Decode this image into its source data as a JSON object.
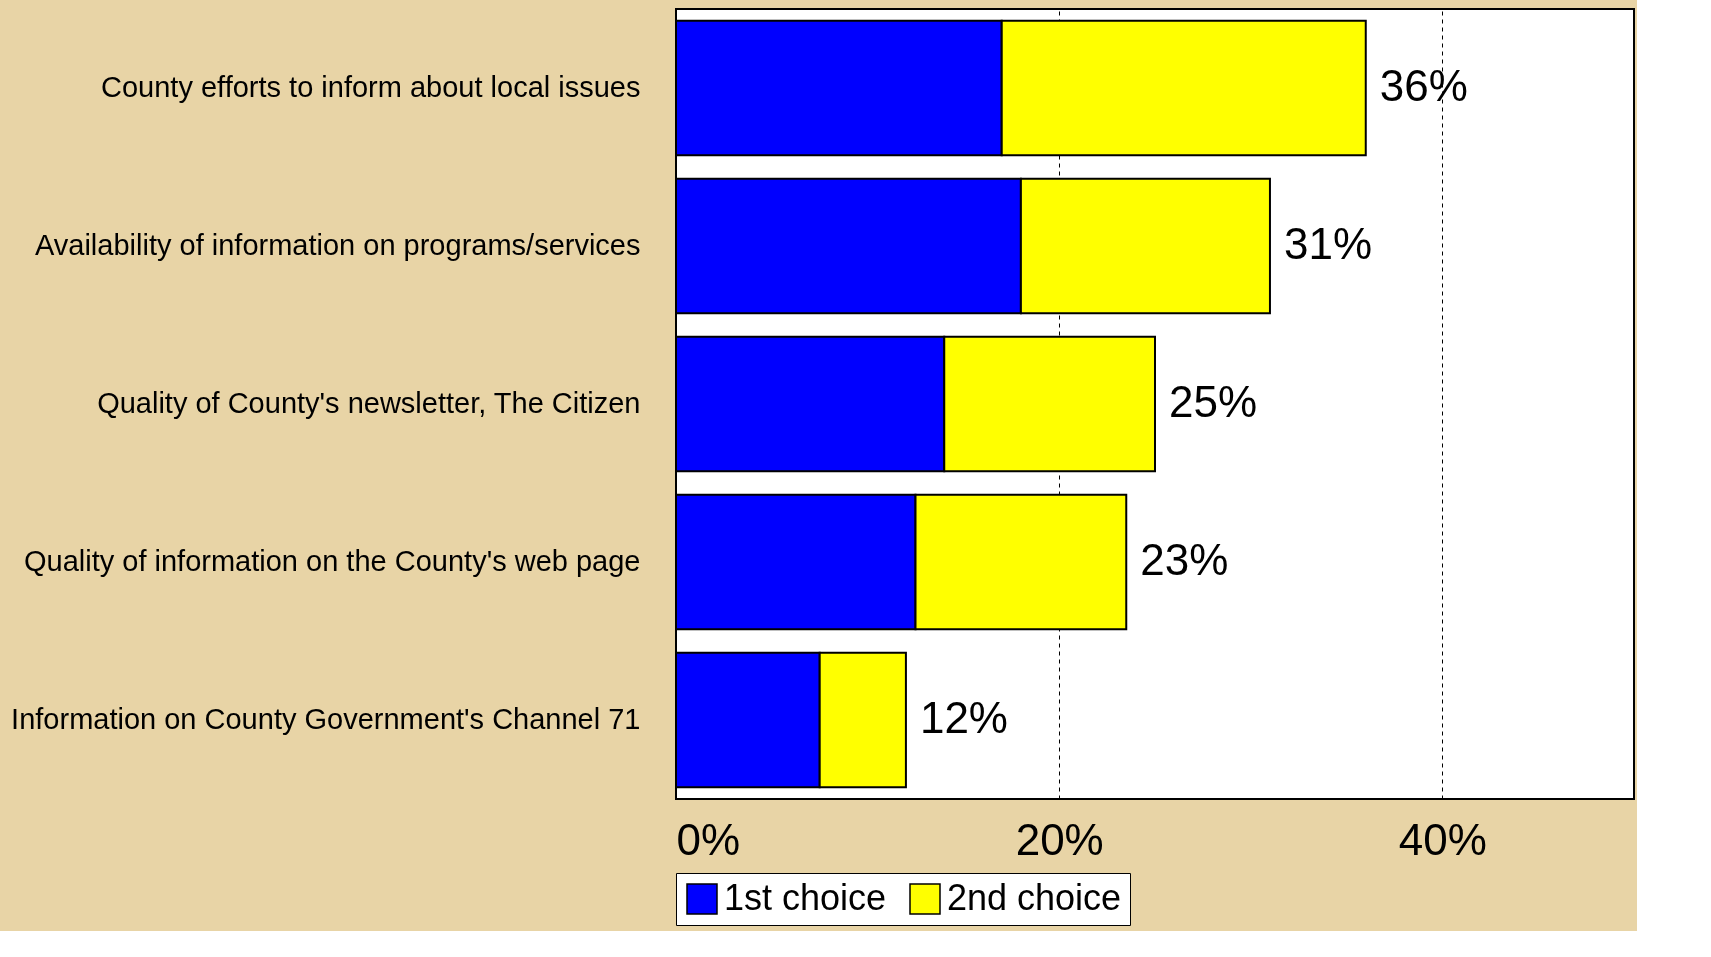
{
  "chart_data": {
    "type": "bar",
    "orientation": "horizontal",
    "stacked": true,
    "categories": [
      "County efforts to inform about local issues",
      "Availability of information on programs/services",
      "Quality of County's newsletter, The Citizen",
      "Quality of information on the County's web page",
      "Information on County Government's Channel 71"
    ],
    "series": [
      {
        "name": "1st choice",
        "color": "#0000ff",
        "values": [
          17,
          18,
          14,
          12.5,
          7.5
        ]
      },
      {
        "name": "2nd choice",
        "color": "#ffff00",
        "values": [
          19,
          13,
          11,
          11,
          4.5
        ]
      }
    ],
    "totals": [
      "36%",
      "31%",
      "25%",
      "23%",
      "12%"
    ],
    "xlim": [
      0,
      50
    ],
    "xticks": [
      {
        "value": 0,
        "label": "0%"
      },
      {
        "value": 20,
        "label": "20%"
      },
      {
        "value": 40,
        "label": "40%"
      }
    ],
    "grid": "x",
    "legend": "bottom"
  }
}
